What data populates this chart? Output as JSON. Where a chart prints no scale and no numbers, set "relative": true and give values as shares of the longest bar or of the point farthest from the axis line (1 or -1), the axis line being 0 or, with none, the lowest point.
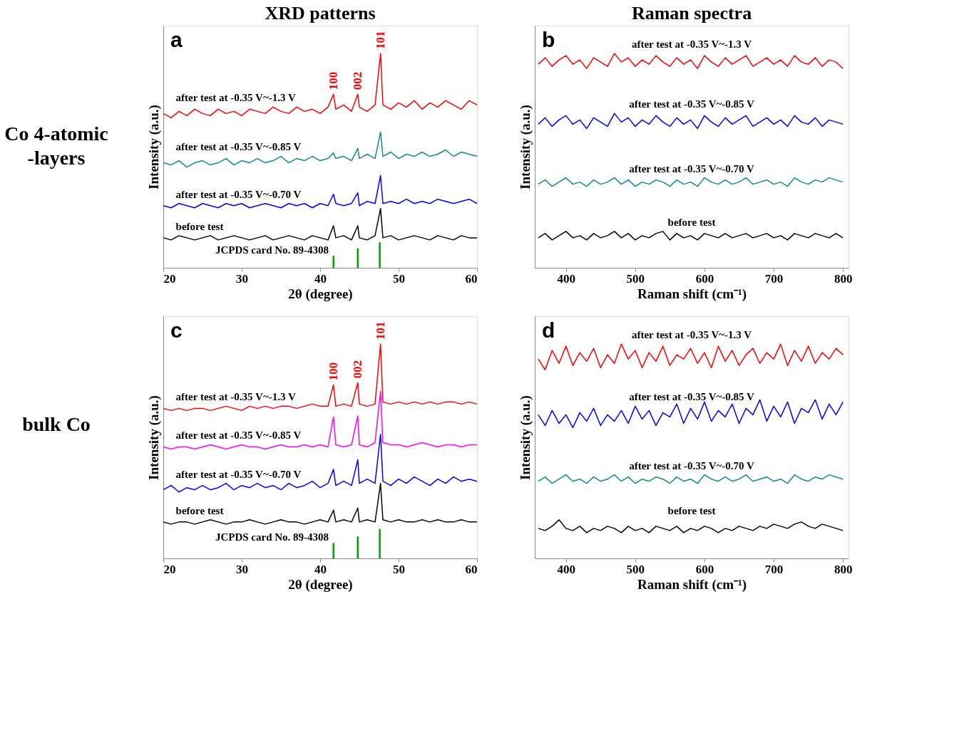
{
  "chart_data": [
    {
      "type": "line",
      "title": "XRD patterns",
      "xlabel": "2θ (degree)",
      "ylabel": "Intensity (a.u.)",
      "relative": true,
      "xlim": [
        20,
        60
      ],
      "xticks": [
        20,
        30,
        40,
        50,
        60
      ],
      "annotations": [
        "a",
        "Co 4-atomic\n-layers",
        {
          "text": "100",
          "x": 41.7,
          "y": 0.81
        },
        {
          "text": "002",
          "x": 44.8,
          "y": 0.81
        },
        {
          "text": "101",
          "x": 47.7,
          "y": 1.0
        }
      ],
      "x": [
        20,
        21,
        22,
        23,
        24,
        25,
        26,
        27,
        28,
        29,
        30,
        31,
        32,
        33,
        34,
        35,
        36,
        37,
        38,
        39,
        40,
        41,
        41.7,
        42,
        43,
        44,
        44.8,
        45,
        46,
        47,
        47.7,
        48,
        49,
        50,
        51,
        52,
        53,
        54,
        55,
        56,
        57,
        58,
        59,
        60
      ],
      "series": [
        {
          "name": "after test at -0.35 V~-1.3 V",
          "color": "#ff0000",
          "values": [
            0.72,
            0.7,
            0.73,
            0.71,
            0.74,
            0.72,
            0.71,
            0.74,
            0.72,
            0.73,
            0.71,
            0.74,
            0.73,
            0.72,
            0.75,
            0.73,
            0.72,
            0.75,
            0.73,
            0.74,
            0.72,
            0.75,
            0.81,
            0.74,
            0.76,
            0.73,
            0.81,
            0.75,
            0.73,
            0.76,
            1.0,
            0.76,
            0.74,
            0.77,
            0.75,
            0.78,
            0.74,
            0.77,
            0.75,
            0.78,
            0.76,
            0.74,
            0.78,
            0.76
          ]
        },
        {
          "name": "after test at -0.35 V~-0.85 V",
          "color": "#108a8a",
          "values": [
            0.49,
            0.48,
            0.5,
            0.47,
            0.49,
            0.5,
            0.48,
            0.49,
            0.51,
            0.48,
            0.5,
            0.49,
            0.51,
            0.49,
            0.5,
            0.52,
            0.49,
            0.51,
            0.5,
            0.52,
            0.5,
            0.51,
            0.536,
            0.51,
            0.52,
            0.5,
            0.557,
            0.51,
            0.53,
            0.51,
            0.634,
            0.52,
            0.54,
            0.51,
            0.53,
            0.52,
            0.54,
            0.52,
            0.53,
            0.55,
            0.52,
            0.54,
            0.53,
            0.52
          ]
        },
        {
          "name": "after test at -0.35 V~-0.70 V",
          "color": "#0000ff",
          "values": [
            0.29,
            0.28,
            0.3,
            0.29,
            0.28,
            0.3,
            0.29,
            0.28,
            0.3,
            0.29,
            0.3,
            0.28,
            0.29,
            0.3,
            0.29,
            0.28,
            0.3,
            0.29,
            0.3,
            0.28,
            0.3,
            0.29,
            0.343,
            0.3,
            0.29,
            0.3,
            0.35,
            0.29,
            0.31,
            0.3,
            0.431,
            0.3,
            0.31,
            0.3,
            0.32,
            0.3,
            0.31,
            0.3,
            0.32,
            0.31,
            0.3,
            0.31,
            0.32,
            0.3
          ]
        },
        {
          "name": "before test",
          "color": "#000000",
          "values": [
            0.14,
            0.13,
            0.15,
            0.14,
            0.13,
            0.14,
            0.15,
            0.13,
            0.14,
            0.15,
            0.14,
            0.13,
            0.14,
            0.15,
            0.13,
            0.14,
            0.15,
            0.14,
            0.13,
            0.15,
            0.14,
            0.13,
            0.196,
            0.14,
            0.15,
            0.13,
            0.196,
            0.14,
            0.13,
            0.15,
            0.277,
            0.14,
            0.15,
            0.13,
            0.14,
            0.15,
            0.14,
            0.13,
            0.15,
            0.14,
            0.13,
            0.15,
            0.14,
            0.14
          ]
        },
        {
          "name": "JCPDS card No. 89-4308",
          "type": "bar",
          "color": "#00a000",
          "x": [
            41.7,
            44.8,
            47.6
          ],
          "values": [
            0.056,
            0.091,
            0.119
          ]
        }
      ]
    },
    {
      "type": "line",
      "title": "Raman spectra",
      "xlabel": "Raman shift (cm⁻¹)",
      "ylabel": "Intensity (a.u.)",
      "relative": true,
      "xlim": [
        355,
        808
      ],
      "xticks": [
        400,
        500,
        600,
        700,
        800
      ],
      "annotations": [
        "b"
      ],
      "x": [
        360,
        370,
        380,
        390,
        400,
        410,
        420,
        430,
        440,
        450,
        460,
        470,
        480,
        490,
        500,
        510,
        520,
        530,
        540,
        550,
        560,
        570,
        580,
        590,
        600,
        610,
        620,
        630,
        640,
        650,
        660,
        670,
        680,
        690,
        700,
        710,
        720,
        730,
        740,
        750,
        760,
        770,
        780,
        790,
        800
      ],
      "series": [
        {
          "name": "after test at -0.35 V~-1.3 V",
          "color": "#ff0000",
          "values": [
            0.95,
            0.98,
            0.94,
            0.97,
            0.99,
            0.95,
            0.97,
            0.93,
            0.98,
            0.96,
            0.94,
            1.0,
            0.96,
            0.98,
            0.94,
            0.97,
            0.95,
            0.99,
            0.96,
            0.94,
            0.98,
            0.95,
            0.97,
            0.93,
            0.99,
            0.96,
            0.94,
            0.98,
            0.95,
            0.97,
            0.99,
            0.94,
            0.96,
            0.98,
            0.95,
            0.97,
            0.94,
            0.99,
            0.96,
            0.95,
            0.98,
            0.94,
            0.97,
            0.96,
            0.93
          ]
        },
        {
          "name": "after test at -0.35 V~-0.85 V",
          "color": "#0000ff",
          "values": [
            0.67,
            0.7,
            0.66,
            0.69,
            0.71,
            0.67,
            0.69,
            0.65,
            0.7,
            0.68,
            0.66,
            0.72,
            0.68,
            0.7,
            0.66,
            0.69,
            0.67,
            0.71,
            0.68,
            0.66,
            0.7,
            0.67,
            0.69,
            0.65,
            0.71,
            0.68,
            0.66,
            0.7,
            0.67,
            0.69,
            0.71,
            0.66,
            0.68,
            0.7,
            0.67,
            0.69,
            0.66,
            0.71,
            0.68,
            0.67,
            0.7,
            0.66,
            0.69,
            0.68,
            0.67
          ]
        },
        {
          "name": "after test at -0.35 V~-0.70 V",
          "color": "#108a8a",
          "values": [
            0.39,
            0.41,
            0.38,
            0.4,
            0.42,
            0.39,
            0.4,
            0.38,
            0.41,
            0.39,
            0.4,
            0.42,
            0.39,
            0.41,
            0.38,
            0.4,
            0.39,
            0.41,
            0.4,
            0.38,
            0.41,
            0.39,
            0.4,
            0.38,
            0.42,
            0.4,
            0.39,
            0.41,
            0.39,
            0.4,
            0.42,
            0.39,
            0.4,
            0.41,
            0.39,
            0.4,
            0.38,
            0.42,
            0.4,
            0.39,
            0.41,
            0.4,
            0.42,
            0.41,
            0.4
          ]
        },
        {
          "name": "before test",
          "color": "#000000",
          "values": [
            0.14,
            0.16,
            0.13,
            0.15,
            0.17,
            0.14,
            0.15,
            0.13,
            0.16,
            0.14,
            0.15,
            0.17,
            0.14,
            0.16,
            0.13,
            0.15,
            0.14,
            0.16,
            0.17,
            0.13,
            0.16,
            0.14,
            0.15,
            0.13,
            0.16,
            0.15,
            0.14,
            0.16,
            0.14,
            0.15,
            0.16,
            0.14,
            0.15,
            0.16,
            0.14,
            0.15,
            0.13,
            0.16,
            0.15,
            0.14,
            0.16,
            0.15,
            0.14,
            0.16,
            0.14
          ]
        }
      ]
    },
    {
      "type": "line",
      "xlabel": "2θ (degree)",
      "ylabel": "Intensity (a.u.)",
      "relative": true,
      "xlim": [
        20,
        60
      ],
      "xticks": [
        20,
        30,
        40,
        50,
        60
      ],
      "annotations": [
        "c",
        "bulk Co",
        {
          "text": "100",
          "x": 41.7,
          "y": 0.81
        },
        {
          "text": "002",
          "x": 44.8,
          "y": 0.82
        },
        {
          "text": "101",
          "x": 47.7,
          "y": 1.0
        }
      ],
      "x": [
        20,
        21,
        22,
        23,
        24,
        25,
        26,
        27,
        28,
        29,
        30,
        31,
        32,
        33,
        34,
        35,
        36,
        37,
        38,
        39,
        40,
        41,
        41.7,
        42,
        43,
        44,
        44.8,
        45,
        46,
        47,
        47.7,
        48,
        49,
        50,
        51,
        52,
        53,
        54,
        55,
        56,
        57,
        58,
        59,
        60
      ],
      "series": [
        {
          "name": "after test at -0.35 V~-1.3 V",
          "color": "#ff0000",
          "values": [
            0.7,
            0.69,
            0.7,
            0.69,
            0.7,
            0.7,
            0.69,
            0.7,
            0.71,
            0.7,
            0.69,
            0.71,
            0.7,
            0.71,
            0.7,
            0.71,
            0.71,
            0.7,
            0.71,
            0.72,
            0.71,
            0.71,
            0.81,
            0.71,
            0.72,
            0.71,
            0.82,
            0.72,
            0.71,
            0.72,
            1.0,
            0.73,
            0.72,
            0.73,
            0.72,
            0.73,
            0.72,
            0.73,
            0.72,
            0.73,
            0.73,
            0.72,
            0.73,
            0.72
          ]
        },
        {
          "name": "after test at -0.35 V~-0.85 V",
          "color": "#ff00ff",
          "values": [
            0.52,
            0.51,
            0.52,
            0.52,
            0.51,
            0.52,
            0.53,
            0.52,
            0.51,
            0.52,
            0.53,
            0.52,
            0.52,
            0.51,
            0.52,
            0.53,
            0.52,
            0.52,
            0.53,
            0.52,
            0.53,
            0.52,
            0.66,
            0.53,
            0.52,
            0.53,
            0.665,
            0.53,
            0.52,
            0.54,
            0.78,
            0.54,
            0.53,
            0.53,
            0.52,
            0.53,
            0.54,
            0.53,
            0.52,
            0.53,
            0.53,
            0.52,
            0.53,
            0.53
          ]
        },
        {
          "name": "after test at -0.35 V~-0.70 V",
          "color": "#0000ff",
          "values": [
            0.32,
            0.34,
            0.31,
            0.33,
            0.32,
            0.34,
            0.32,
            0.33,
            0.35,
            0.32,
            0.34,
            0.33,
            0.35,
            0.33,
            0.34,
            0.32,
            0.35,
            0.33,
            0.34,
            0.36,
            0.33,
            0.35,
            0.415,
            0.34,
            0.36,
            0.34,
            0.46,
            0.35,
            0.37,
            0.35,
            0.58,
            0.36,
            0.34,
            0.37,
            0.35,
            0.38,
            0.36,
            0.34,
            0.37,
            0.35,
            0.38,
            0.36,
            0.37,
            0.36
          ]
        },
        {
          "name": "before test",
          "color": "#000000",
          "values": [
            0.17,
            0.16,
            0.17,
            0.17,
            0.16,
            0.17,
            0.18,
            0.17,
            0.16,
            0.17,
            0.17,
            0.18,
            0.17,
            0.16,
            0.17,
            0.18,
            0.17,
            0.17,
            0.16,
            0.17,
            0.18,
            0.17,
            0.225,
            0.17,
            0.18,
            0.17,
            0.235,
            0.17,
            0.18,
            0.17,
            0.35,
            0.18,
            0.17,
            0.18,
            0.17,
            0.17,
            0.18,
            0.17,
            0.18,
            0.17,
            0.17,
            0.18,
            0.17,
            0.17
          ]
        },
        {
          "name": "JCPDS card No. 89-4308",
          "type": "bar",
          "color": "#00a000",
          "x": [
            41.7,
            44.8,
            47.6
          ],
          "values": [
            0.072,
            0.102,
            0.137
          ]
        }
      ]
    },
    {
      "type": "line",
      "xlabel": "Raman shift (cm⁻¹)",
      "ylabel": "Intensity (a.u.)",
      "relative": true,
      "xlim": [
        355,
        808
      ],
      "xticks": [
        400,
        500,
        600,
        700,
        800
      ],
      "annotations": [
        "d"
      ],
      "x": [
        360,
        370,
        380,
        390,
        400,
        410,
        420,
        430,
        440,
        450,
        460,
        470,
        480,
        490,
        500,
        510,
        520,
        530,
        540,
        550,
        560,
        570,
        580,
        590,
        600,
        610,
        620,
        630,
        640,
        650,
        660,
        670,
        680,
        690,
        700,
        710,
        720,
        730,
        740,
        750,
        760,
        770,
        780,
        790,
        800
      ],
      "series": [
        {
          "name": "after test at -0.35 V~-1.3 V",
          "color": "#ff0000",
          "values": [
            0.93,
            0.88,
            0.97,
            0.91,
            0.99,
            0.9,
            0.96,
            0.92,
            0.98,
            0.89,
            0.95,
            0.91,
            1.0,
            0.93,
            0.97,
            0.89,
            0.96,
            0.92,
            0.99,
            0.9,
            0.95,
            0.93,
            0.98,
            0.91,
            0.96,
            0.89,
            0.99,
            0.92,
            0.97,
            0.9,
            0.95,
            0.98,
            0.91,
            0.96,
            0.93,
            1.0,
            0.9,
            0.97,
            0.92,
            0.99,
            0.91,
            0.96,
            0.93,
            0.98,
            0.95
          ]
        },
        {
          "name": "after test at -0.35 V~-0.85 V",
          "color": "#0000ff",
          "values": [
            0.67,
            0.62,
            0.69,
            0.63,
            0.67,
            0.61,
            0.68,
            0.64,
            0.7,
            0.62,
            0.67,
            0.64,
            0.69,
            0.63,
            0.71,
            0.65,
            0.69,
            0.62,
            0.68,
            0.66,
            0.72,
            0.63,
            0.7,
            0.65,
            0.73,
            0.64,
            0.69,
            0.66,
            0.72,
            0.63,
            0.7,
            0.67,
            0.74,
            0.64,
            0.71,
            0.66,
            0.73,
            0.63,
            0.7,
            0.68,
            0.74,
            0.65,
            0.72,
            0.67,
            0.73
          ]
        },
        {
          "name": "after test at -0.35 V~-0.70 V",
          "color": "#108a8a",
          "values": [
            0.36,
            0.38,
            0.35,
            0.37,
            0.39,
            0.36,
            0.37,
            0.35,
            0.38,
            0.36,
            0.37,
            0.39,
            0.36,
            0.38,
            0.35,
            0.37,
            0.36,
            0.38,
            0.37,
            0.35,
            0.38,
            0.36,
            0.37,
            0.35,
            0.39,
            0.37,
            0.36,
            0.38,
            0.36,
            0.37,
            0.39,
            0.36,
            0.37,
            0.38,
            0.36,
            0.37,
            0.35,
            0.39,
            0.37,
            0.36,
            0.38,
            0.37,
            0.39,
            0.38,
            0.37
          ]
        },
        {
          "name": "before test",
          "color": "#000000",
          "values": [
            0.14,
            0.13,
            0.15,
            0.18,
            0.14,
            0.13,
            0.15,
            0.12,
            0.14,
            0.13,
            0.15,
            0.14,
            0.12,
            0.15,
            0.13,
            0.14,
            0.12,
            0.15,
            0.14,
            0.13,
            0.15,
            0.12,
            0.14,
            0.13,
            0.15,
            0.14,
            0.12,
            0.14,
            0.13,
            0.15,
            0.14,
            0.13,
            0.15,
            0.14,
            0.16,
            0.15,
            0.14,
            0.16,
            0.17,
            0.15,
            0.14,
            0.16,
            0.15,
            0.14,
            0.13
          ]
        }
      ]
    }
  ]
}
